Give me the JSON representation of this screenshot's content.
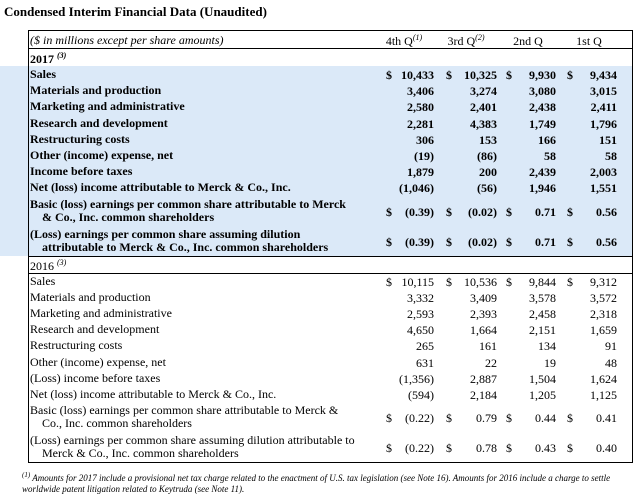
{
  "title": "Condensed Interim Financial Data (Unaudited)",
  "header": {
    "units": "($ in millions except per share amounts)",
    "columns": [
      {
        "label": "4th Q",
        "note": "(1)"
      },
      {
        "label": "3rd Q",
        "note": "(2)"
      },
      {
        "label": "2nd Q",
        "note": ""
      },
      {
        "label": "1st Q",
        "note": ""
      }
    ]
  },
  "sections": [
    {
      "year": "2017",
      "note": "(3)",
      "rows": [
        {
          "label": "Sales",
          "vals": [
            "10,433",
            "10,325",
            "9,930",
            "9,434"
          ],
          "dollar": [
            true,
            true,
            true,
            true
          ]
        },
        {
          "label": "Materials and production",
          "vals": [
            "3,406",
            "3,274",
            "3,080",
            "3,015"
          ],
          "dollar": [
            false,
            false,
            false,
            false
          ]
        },
        {
          "label": "Marketing and administrative",
          "vals": [
            "2,580",
            "2,401",
            "2,438",
            "2,411"
          ],
          "dollar": [
            false,
            false,
            false,
            false
          ]
        },
        {
          "label": "Research and development",
          "vals": [
            "2,281",
            "4,383",
            "1,749",
            "1,796"
          ],
          "dollar": [
            false,
            false,
            false,
            false
          ]
        },
        {
          "label": "Restructuring costs",
          "vals": [
            "306",
            "153",
            "166",
            "151"
          ],
          "dollar": [
            false,
            false,
            false,
            false
          ]
        },
        {
          "label": "Other (income) expense, net",
          "vals": [
            "(19)",
            "(86)",
            "58",
            "58"
          ],
          "dollar": [
            false,
            false,
            false,
            false
          ]
        },
        {
          "label": "Income before taxes",
          "vals": [
            "1,879",
            "200",
            "2,439",
            "2,003"
          ],
          "dollar": [
            false,
            false,
            false,
            false
          ]
        },
        {
          "label": "Net (loss) income attributable to Merck & Co., Inc.",
          "vals": [
            "(1,046)",
            "(56)",
            "1,946",
            "1,551"
          ],
          "dollar": [
            false,
            false,
            false,
            false
          ]
        },
        {
          "label": "Basic (loss) earnings per common share attributable to Merck\n& Co., Inc. common shareholders",
          "vals": [
            "(0.39)",
            "(0.02)",
            "0.71",
            "0.56"
          ],
          "dollar": [
            true,
            true,
            true,
            true
          ]
        },
        {
          "label": "(Loss) earnings per common share assuming dilution\nattributable to Merck & Co., Inc. common shareholders",
          "vals": [
            "(0.39)",
            "(0.02)",
            "0.71",
            "0.56"
          ],
          "dollar": [
            true,
            true,
            true,
            true
          ]
        }
      ]
    },
    {
      "year": "2016",
      "note": "(3)",
      "rows": [
        {
          "label": "Sales",
          "vals": [
            "10,115",
            "10,536",
            "9,844",
            "9,312"
          ],
          "dollar": [
            true,
            true,
            true,
            true
          ]
        },
        {
          "label": "Materials and production",
          "vals": [
            "3,332",
            "3,409",
            "3,578",
            "3,572"
          ],
          "dollar": [
            false,
            false,
            false,
            false
          ]
        },
        {
          "label": "Marketing and administrative",
          "vals": [
            "2,593",
            "2,393",
            "2,458",
            "2,318"
          ],
          "dollar": [
            false,
            false,
            false,
            false
          ]
        },
        {
          "label": "Research and development",
          "vals": [
            "4,650",
            "1,664",
            "2,151",
            "1,659"
          ],
          "dollar": [
            false,
            false,
            false,
            false
          ]
        },
        {
          "label": "Restructuring costs",
          "vals": [
            "265",
            "161",
            "134",
            "91"
          ],
          "dollar": [
            false,
            false,
            false,
            false
          ]
        },
        {
          "label": "Other (income) expense, net",
          "vals": [
            "631",
            "22",
            "19",
            "48"
          ],
          "dollar": [
            false,
            false,
            false,
            false
          ]
        },
        {
          "label": "(Loss) income before taxes",
          "vals": [
            "(1,356)",
            "2,887",
            "1,504",
            "1,624"
          ],
          "dollar": [
            false,
            false,
            false,
            false
          ]
        },
        {
          "label": "Net (loss) income attributable to Merck & Co., Inc.",
          "vals": [
            "(594)",
            "2,184",
            "1,205",
            "1,125"
          ],
          "dollar": [
            false,
            false,
            false,
            false
          ]
        },
        {
          "label": "Basic (loss) earnings per common share attributable to Merck &\nCo., Inc. common shareholders",
          "vals": [
            "(0.22)",
            "0.79",
            "0.44",
            "0.41"
          ],
          "dollar": [
            true,
            true,
            true,
            true
          ]
        },
        {
          "label": "(Loss) earnings per common share assuming dilution attributable to\nMerck & Co., Inc. common shareholders",
          "vals": [
            "(0.22)",
            "0.78",
            "0.43",
            "0.40"
          ],
          "dollar": [
            true,
            true,
            true,
            true
          ]
        }
      ]
    }
  ],
  "currency_symbol": "$",
  "footnote": {
    "marker": "(1)",
    "text": "Amounts for 2017 include a provisional net tax charge related to the enactment of U.S. tax legislation (see Note 16). Amounts for 2016 include a charge to settle worldwide patent litigation related to Keytruda (see Note 11)."
  },
  "colors": {
    "shade": "#dbe9f8"
  }
}
